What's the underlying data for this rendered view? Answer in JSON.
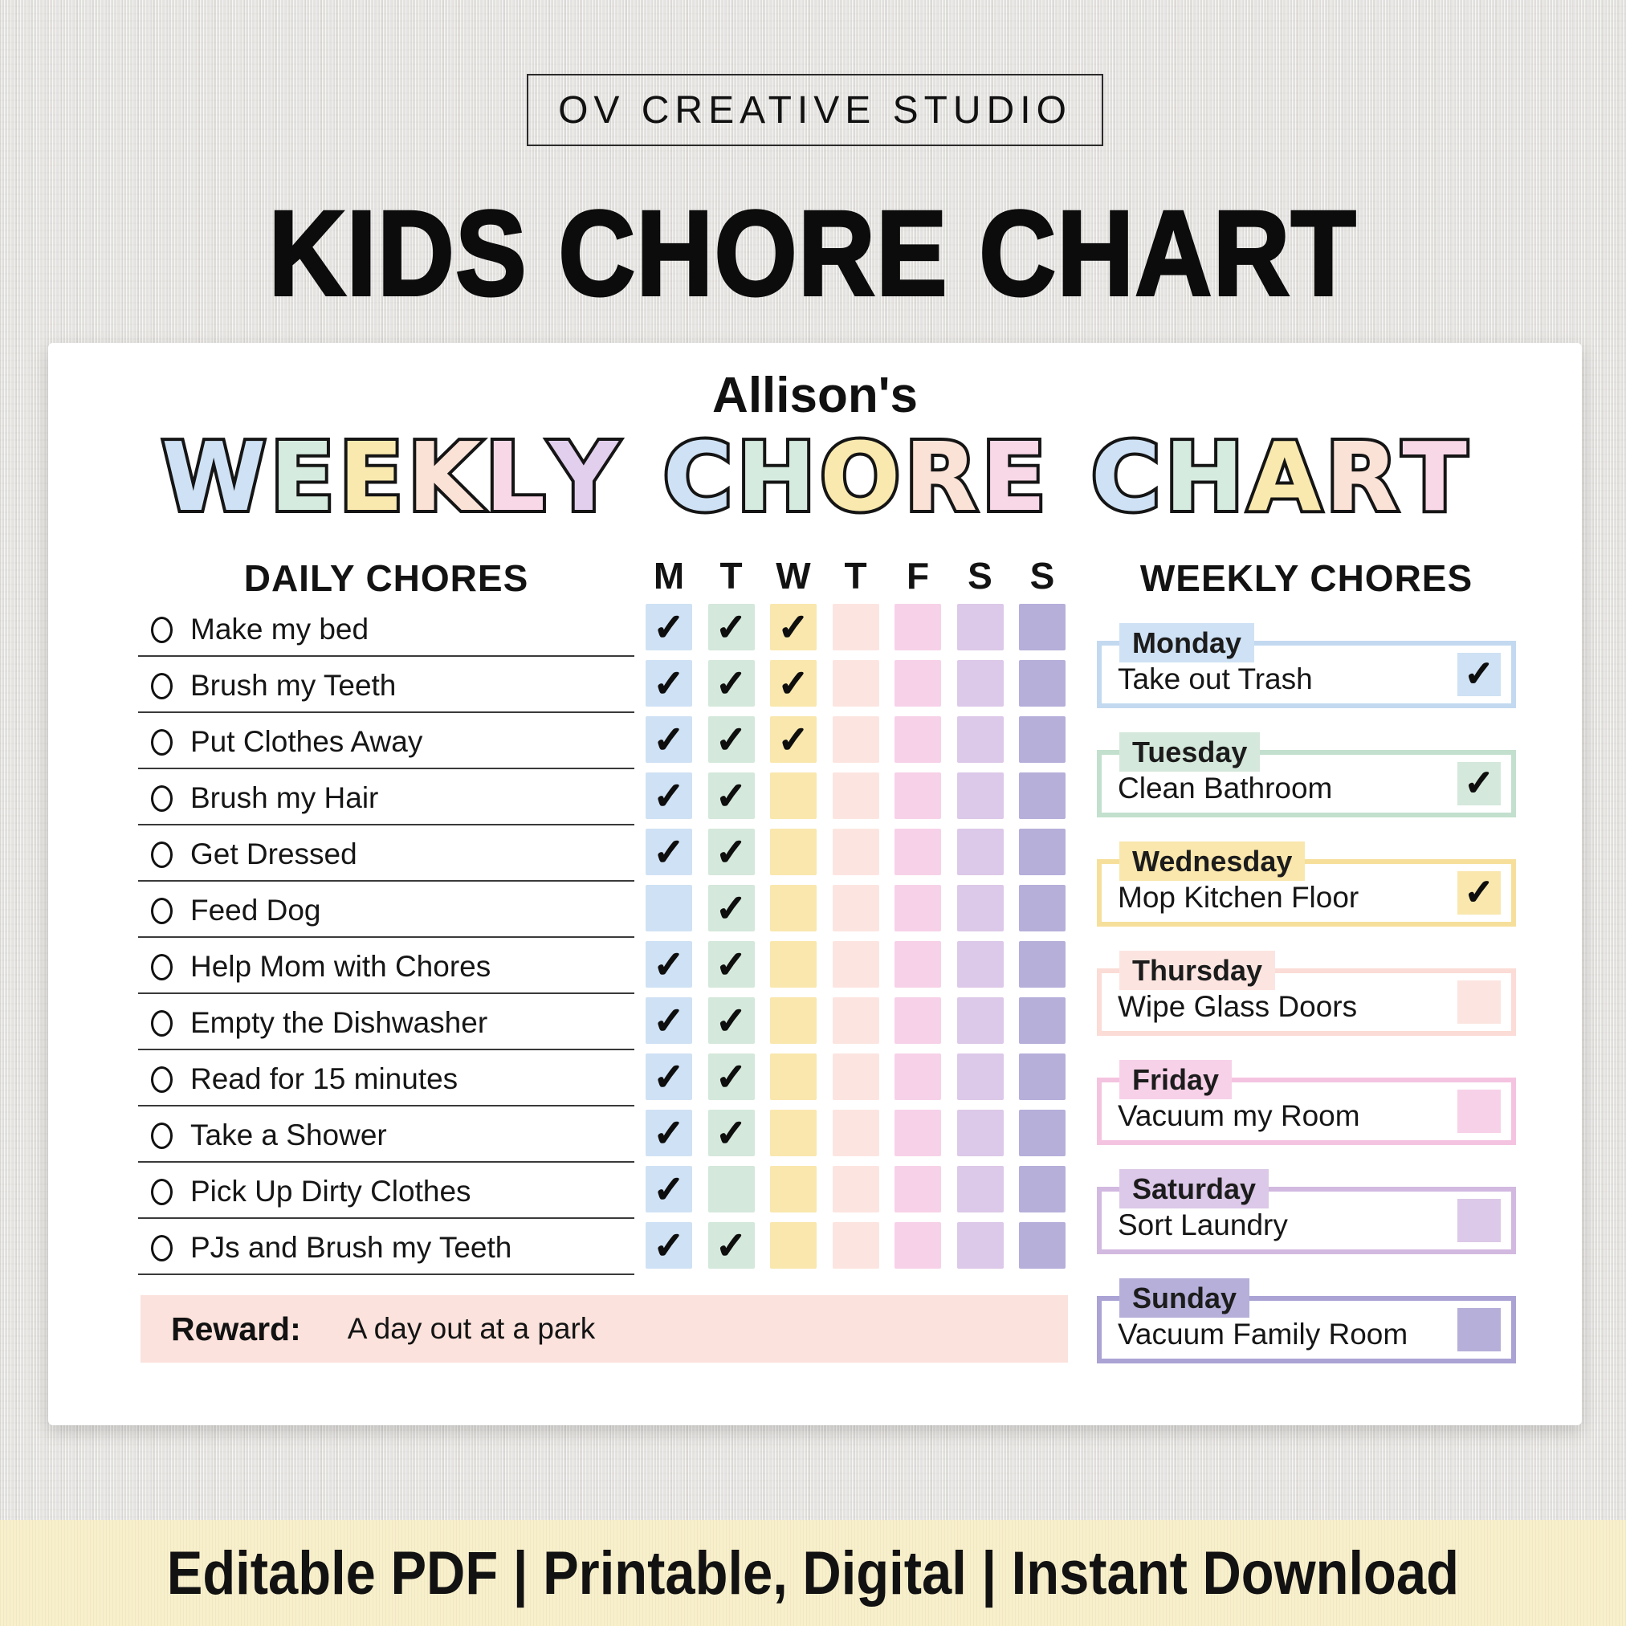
{
  "brand": {
    "name": "OV CREATIVE STUDIO"
  },
  "hero_title": "KIDS CHORE CHART",
  "checkmark": "✓",
  "card": {
    "owner": "Allison's",
    "bubble_title": {
      "words": [
        {
          "text": "WEEKLY",
          "colors": [
            "blue",
            "green",
            "yellow",
            "peach",
            "pink",
            "purple"
          ]
        },
        {
          "text": "CHORE",
          "colors": [
            "blue",
            "green",
            "yellow",
            "peach",
            "pink"
          ]
        },
        {
          "text": "CHART",
          "colors": [
            "blue",
            "green",
            "yellow",
            "peach",
            "pink"
          ]
        }
      ]
    },
    "palette": {
      "blue": "#cfe2f5",
      "green": "#d6ebdf",
      "yellow": "#f9e9ae",
      "peach": "#fbe2d7",
      "pink": "#f8d7e7",
      "purple": "#e2cfee"
    },
    "daily": {
      "heading": "DAILY CHORES",
      "day_headers": [
        "M",
        "T",
        "W",
        "T",
        "F",
        "S",
        "S"
      ],
      "column_colors": [
        "#cfe1f4",
        "#d4e8db",
        "#f9e7ad",
        "#fce5e1",
        "#f7d1e8",
        "#dcc8e8",
        "#b5afda"
      ],
      "rows": [
        {
          "chore": "Make my bed",
          "checks": [
            1,
            1,
            1,
            0,
            0,
            0,
            0
          ]
        },
        {
          "chore": "Brush my Teeth",
          "checks": [
            1,
            1,
            1,
            0,
            0,
            0,
            0
          ]
        },
        {
          "chore": "Put Clothes Away",
          "checks": [
            1,
            1,
            1,
            0,
            0,
            0,
            0
          ]
        },
        {
          "chore": "Brush my Hair",
          "checks": [
            1,
            1,
            0,
            0,
            0,
            0,
            0
          ]
        },
        {
          "chore": "Get Dressed",
          "checks": [
            1,
            1,
            0,
            0,
            0,
            0,
            0
          ]
        },
        {
          "chore": "Feed Dog",
          "checks": [
            0,
            1,
            0,
            0,
            0,
            0,
            0
          ]
        },
        {
          "chore": "Help Mom with Chores",
          "checks": [
            1,
            1,
            0,
            0,
            0,
            0,
            0
          ]
        },
        {
          "chore": "Empty the Dishwasher",
          "checks": [
            1,
            1,
            0,
            0,
            0,
            0,
            0
          ]
        },
        {
          "chore": "Read for 15 minutes",
          "checks": [
            1,
            1,
            0,
            0,
            0,
            0,
            0
          ]
        },
        {
          "chore": "Take a Shower",
          "checks": [
            1,
            1,
            0,
            0,
            0,
            0,
            0
          ]
        },
        {
          "chore": "Pick Up Dirty Clothes",
          "checks": [
            1,
            0,
            0,
            0,
            0,
            0,
            0
          ]
        },
        {
          "chore": "PJs and Brush my Teeth",
          "checks": [
            1,
            1,
            0,
            0,
            0,
            0,
            0
          ]
        }
      ]
    },
    "reward": {
      "label": "Reward:",
      "value": "A day out at a park",
      "bg": "#fbe2dc"
    },
    "weekly": {
      "heading": "WEEKLY CHORES",
      "items": [
        {
          "day": "Monday",
          "chore": "Take out Trash",
          "checked": true,
          "color": "#cfe1f4",
          "border": "#c3d9f0"
        },
        {
          "day": "Tuesday",
          "chore": "Clean Bathroom",
          "checked": true,
          "color": "#d4e8db",
          "border": "#c2e0cd"
        },
        {
          "day": "Wednesday",
          "chore": "Mop Kitchen Floor",
          "checked": true,
          "color": "#f9e7ad",
          "border": "#f6df9b"
        },
        {
          "day": "Thursday",
          "chore": "Wipe Glass Doors",
          "checked": false,
          "color": "#fce5e1",
          "border": "#fbdcd6"
        },
        {
          "day": "Friday",
          "chore": "Vacuum my Room",
          "checked": false,
          "color": "#f7d1e8",
          "border": "#f4c3e0"
        },
        {
          "day": "Saturday",
          "chore": "Sort Laundry",
          "checked": false,
          "color": "#dcc8e8",
          "border": "#d2b9e0"
        },
        {
          "day": "Sunday",
          "chore": "Vacuum Family Room",
          "checked": false,
          "color": "#b5afda",
          "border": "#aaa3d4"
        }
      ]
    }
  },
  "footer": {
    "text": "Editable PDF | Printable, Digital | Instant Download"
  }
}
